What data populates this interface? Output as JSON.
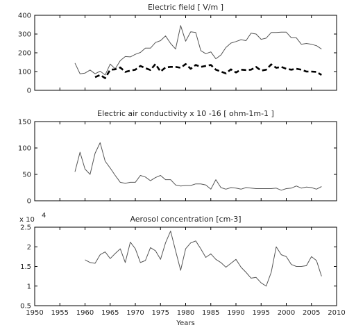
{
  "chart_data": [
    {
      "type": "line",
      "title": "Electric field  [ V/m ]",
      "xlim": [
        1950,
        2010
      ],
      "ylim": [
        0,
        400
      ],
      "yticks": [
        "0",
        "100",
        "200",
        "300",
        "400"
      ],
      "series": [
        {
          "style": "solid",
          "color": "#555555",
          "x": [
            1958,
            1959,
            1960,
            1961,
            1962,
            1963,
            1964,
            1965,
            1966,
            1967,
            1968,
            1969,
            1970,
            1971,
            1972,
            1973,
            1974,
            1975,
            1976,
            1977,
            1978,
            1979,
            1980,
            1981,
            1982,
            1983,
            1984,
            1985,
            1986,
            1987,
            1988,
            1989,
            1990,
            1991,
            1992,
            1993,
            1994,
            1995,
            1996,
            1997,
            1998,
            1999,
            2000,
            2001,
            2002,
            2003,
            2004,
            2005,
            2006,
            2007
          ],
          "y": [
            145,
            88,
            92,
            108,
            88,
            102,
            82,
            140,
            115,
            158,
            180,
            178,
            192,
            202,
            225,
            225,
            255,
            265,
            290,
            250,
            220,
            345,
            262,
            312,
            308,
            212,
            195,
            205,
            168,
            188,
            228,
            252,
            260,
            270,
            265,
            305,
            300,
            272,
            278,
            308,
            308,
            310,
            310,
            280,
            280,
            245,
            250,
            245,
            238,
            220
          ]
        },
        {
          "style": "dashed",
          "color": "#000000",
          "x": [
            1962,
            1963,
            1964,
            1965,
            1966,
            1967,
            1968,
            1969,
            1970,
            1971,
            1972,
            1973,
            1974,
            1975,
            1976,
            1977,
            1978,
            1979,
            1980,
            1981,
            1982,
            1983,
            1984,
            1985,
            1986,
            1987,
            1988,
            1989,
            1990,
            1991,
            1992,
            1993,
            1994,
            1995,
            1996,
            1997,
            1998,
            1999,
            2000,
            2001,
            2002,
            2003,
            2004,
            2005,
            2006,
            2007
          ],
          "y": [
            70,
            82,
            65,
            110,
            112,
            122,
            98,
            105,
            110,
            130,
            118,
            108,
            140,
            100,
            122,
            125,
            125,
            120,
            140,
            115,
            135,
            125,
            130,
            135,
            110,
            100,
            90,
            112,
            95,
            110,
            108,
            110,
            125,
            105,
            110,
            138,
            120,
            125,
            115,
            110,
            115,
            110,
            100,
            100,
            98,
            82
          ]
        }
      ]
    },
    {
      "type": "line",
      "title": "Electric air conductivity   x 10 -16 [ ohm-1m-1 ]",
      "xlim": [
        1950,
        2010
      ],
      "ylim": [
        0,
        150
      ],
      "yticks": [
        "0",
        "50",
        "100",
        "150"
      ],
      "series": [
        {
          "style": "solid",
          "color": "#555555",
          "x": [
            1958,
            1959,
            1960,
            1961,
            1962,
            1963,
            1964,
            1965,
            1966,
            1967,
            1968,
            1969,
            1970,
            1971,
            1972,
            1973,
            1974,
            1975,
            1976,
            1977,
            1978,
            1979,
            1980,
            1981,
            1982,
            1983,
            1984,
            1985,
            1986,
            1987,
            1988,
            1989,
            1990,
            1991,
            1992,
            1993,
            1994,
            1995,
            1996,
            1997,
            1998,
            1999,
            2000,
            2001,
            2002,
            2003,
            2004,
            2005,
            2006,
            2007
          ],
          "y": [
            55,
            92,
            60,
            50,
            90,
            110,
            75,
            62,
            48,
            35,
            33,
            35,
            35,
            48,
            45,
            38,
            44,
            48,
            40,
            40,
            30,
            28,
            29,
            29,
            32,
            32,
            30,
            22,
            40,
            25,
            22,
            25,
            24,
            22,
            25,
            24,
            23,
            23,
            23,
            23,
            24,
            20,
            23,
            24,
            28,
            24,
            26,
            25,
            22,
            27
          ]
        }
      ]
    },
    {
      "type": "line",
      "title": "Aerosol concentration   [cm-3]",
      "xlim": [
        1950,
        2010
      ],
      "ylim": [
        0.5,
        2.5
      ],
      "multiplier": "x 10",
      "multiplier_exp": "4",
      "xlabel": "Years",
      "xticks": [
        "1950",
        "1955",
        "1960",
        "1965",
        "1970",
        "1975",
        "1980",
        "1985",
        "1990",
        "1995",
        "2000",
        "2005",
        "2010"
      ],
      "yticks": [
        "0.5",
        "1",
        "1.5",
        "2",
        "2.5"
      ],
      "series": [
        {
          "style": "solid",
          "color": "#555555",
          "x": [
            1960,
            1961,
            1962,
            1963,
            1964,
            1965,
            1966,
            1967,
            1968,
            1969,
            1970,
            1971,
            1972,
            1973,
            1974,
            1975,
            1976,
            1977,
            1978,
            1979,
            1980,
            1981,
            1982,
            1983,
            1984,
            1985,
            1986,
            1987,
            1988,
            1989,
            1990,
            1991,
            1992,
            1993,
            1994,
            1995,
            1996,
            1997,
            1998,
            1999,
            2000,
            2001,
            2002,
            2003,
            2004,
            2005,
            2006,
            2007
          ],
          "y": [
            1.67,
            1.6,
            1.58,
            1.8,
            1.87,
            1.7,
            1.83,
            1.95,
            1.6,
            2.12,
            1.95,
            1.6,
            1.65,
            1.98,
            1.9,
            1.68,
            2.1,
            2.4,
            1.9,
            1.4,
            1.95,
            2.1,
            2.15,
            1.95,
            1.73,
            1.82,
            1.68,
            1.6,
            1.48,
            1.58,
            1.68,
            1.48,
            1.35,
            1.2,
            1.22,
            1.08,
            1.0,
            1.35,
            2.0,
            1.8,
            1.75,
            1.55,
            1.5,
            1.5,
            1.52,
            1.75,
            1.65,
            1.25
          ]
        }
      ]
    }
  ]
}
